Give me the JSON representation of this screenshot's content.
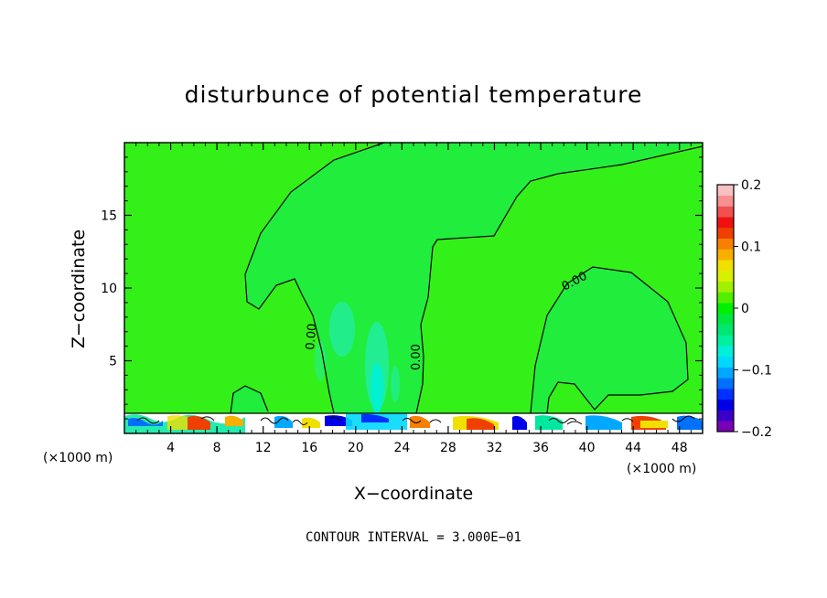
{
  "chart_data": {
    "type": "heatmap",
    "title": "disturbunce of potential temperature",
    "xlabel": "X−coordinate",
    "ylabel": "Z−coordinate",
    "x_unit_left": "(×1000 m)",
    "x_unit_right": "(×1000 m)",
    "xlim": [
      0,
      50
    ],
    "ylim": [
      0,
      20
    ],
    "x_ticks": [
      4,
      8,
      12,
      16,
      20,
      24,
      28,
      32,
      36,
      40,
      44,
      48
    ],
    "y_ticks": [
      5,
      10,
      15
    ],
    "colorbar": {
      "min": -0.2,
      "max": 0.2,
      "tick_values": [
        0.2,
        0.1,
        0,
        -0.1,
        -0.2
      ],
      "tick_labels": [
        "0.2",
        "0.1",
        "0",
        "−0.1",
        "−0.2"
      ],
      "colors": [
        "#7a00b8",
        "#3a00c8",
        "#0000e8",
        "#0030ff",
        "#0070ff",
        "#00a8ff",
        "#00d8ff",
        "#00f0d8",
        "#00f0a0",
        "#00e870",
        "#00e840",
        "#00f000",
        "#50f000",
        "#a0f000",
        "#d8f000",
        "#f0e000",
        "#f8b000",
        "#f88000",
        "#f04000",
        "#f01010",
        "#f05050",
        "#f89090",
        "#f8c0c0"
      ]
    },
    "contour_interval_text": "CONTOUR INTERVAL = 3.000E−01",
    "contour_labels": [
      "0.00",
      "0.00",
      "0.00"
    ],
    "background_value": 0
  }
}
